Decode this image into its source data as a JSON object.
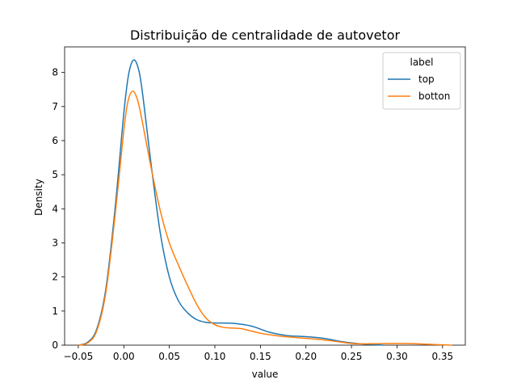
{
  "chart_data": {
    "type": "line",
    "title": "Distribuição de centralidade de autovetor",
    "xlabel": "value",
    "ylabel": "Density",
    "xlim": [
      -0.065,
      0.375
    ],
    "ylim": [
      0,
      8.75
    ],
    "x_ticks": [
      -0.05,
      0.0,
      0.05,
      0.1,
      0.15,
      0.2,
      0.25,
      0.3,
      0.35
    ],
    "x_tick_labels": [
      "−0.05",
      "0.00",
      "0.05",
      "0.10",
      "0.15",
      "0.20",
      "0.25",
      "0.30",
      "0.35"
    ],
    "y_ticks": [
      0,
      1,
      2,
      3,
      4,
      5,
      6,
      7,
      8
    ],
    "y_tick_labels": [
      "0",
      "1",
      "2",
      "3",
      "4",
      "5",
      "6",
      "7",
      "8"
    ],
    "grid": false,
    "legend": {
      "title": "label",
      "placement": "top-right"
    },
    "series": [
      {
        "name": "top",
        "color": "#1f77b4",
        "points": [
          [
            -0.05,
            0.0
          ],
          [
            -0.04,
            0.08
          ],
          [
            -0.03,
            0.45
          ],
          [
            -0.02,
            1.6
          ],
          [
            -0.01,
            3.9
          ],
          [
            0.0,
            6.8
          ],
          [
            0.005,
            7.9
          ],
          [
            0.01,
            8.35
          ],
          [
            0.015,
            8.2
          ],
          [
            0.02,
            7.5
          ],
          [
            0.03,
            5.3
          ],
          [
            0.04,
            3.3
          ],
          [
            0.05,
            2.0
          ],
          [
            0.06,
            1.3
          ],
          [
            0.07,
            0.95
          ],
          [
            0.08,
            0.75
          ],
          [
            0.09,
            0.67
          ],
          [
            0.1,
            0.65
          ],
          [
            0.12,
            0.64
          ],
          [
            0.14,
            0.56
          ],
          [
            0.16,
            0.38
          ],
          [
            0.18,
            0.28
          ],
          [
            0.2,
            0.25
          ],
          [
            0.22,
            0.2
          ],
          [
            0.24,
            0.1
          ],
          [
            0.26,
            0.04
          ],
          [
            0.28,
            0.01
          ],
          [
            0.285,
            0.0
          ]
        ]
      },
      {
        "name": "botton",
        "color": "#ff7f0e",
        "points": [
          [
            -0.05,
            0.0
          ],
          [
            -0.04,
            0.06
          ],
          [
            -0.03,
            0.4
          ],
          [
            -0.02,
            1.5
          ],
          [
            -0.01,
            3.7
          ],
          [
            0.0,
            6.3
          ],
          [
            0.005,
            7.2
          ],
          [
            0.01,
            7.45
          ],
          [
            0.015,
            7.2
          ],
          [
            0.02,
            6.6
          ],
          [
            0.03,
            5.2
          ],
          [
            0.04,
            3.95
          ],
          [
            0.05,
            3.0
          ],
          [
            0.06,
            2.35
          ],
          [
            0.07,
            1.75
          ],
          [
            0.08,
            1.2
          ],
          [
            0.09,
            0.8
          ],
          [
            0.1,
            0.6
          ],
          [
            0.11,
            0.52
          ],
          [
            0.12,
            0.5
          ],
          [
            0.13,
            0.48
          ],
          [
            0.15,
            0.35
          ],
          [
            0.17,
            0.27
          ],
          [
            0.19,
            0.22
          ],
          [
            0.21,
            0.18
          ],
          [
            0.23,
            0.12
          ],
          [
            0.25,
            0.05
          ],
          [
            0.27,
            0.04
          ],
          [
            0.29,
            0.05
          ],
          [
            0.31,
            0.05
          ],
          [
            0.33,
            0.03
          ],
          [
            0.35,
            0.01
          ],
          [
            0.36,
            0.0
          ]
        ]
      }
    ]
  }
}
